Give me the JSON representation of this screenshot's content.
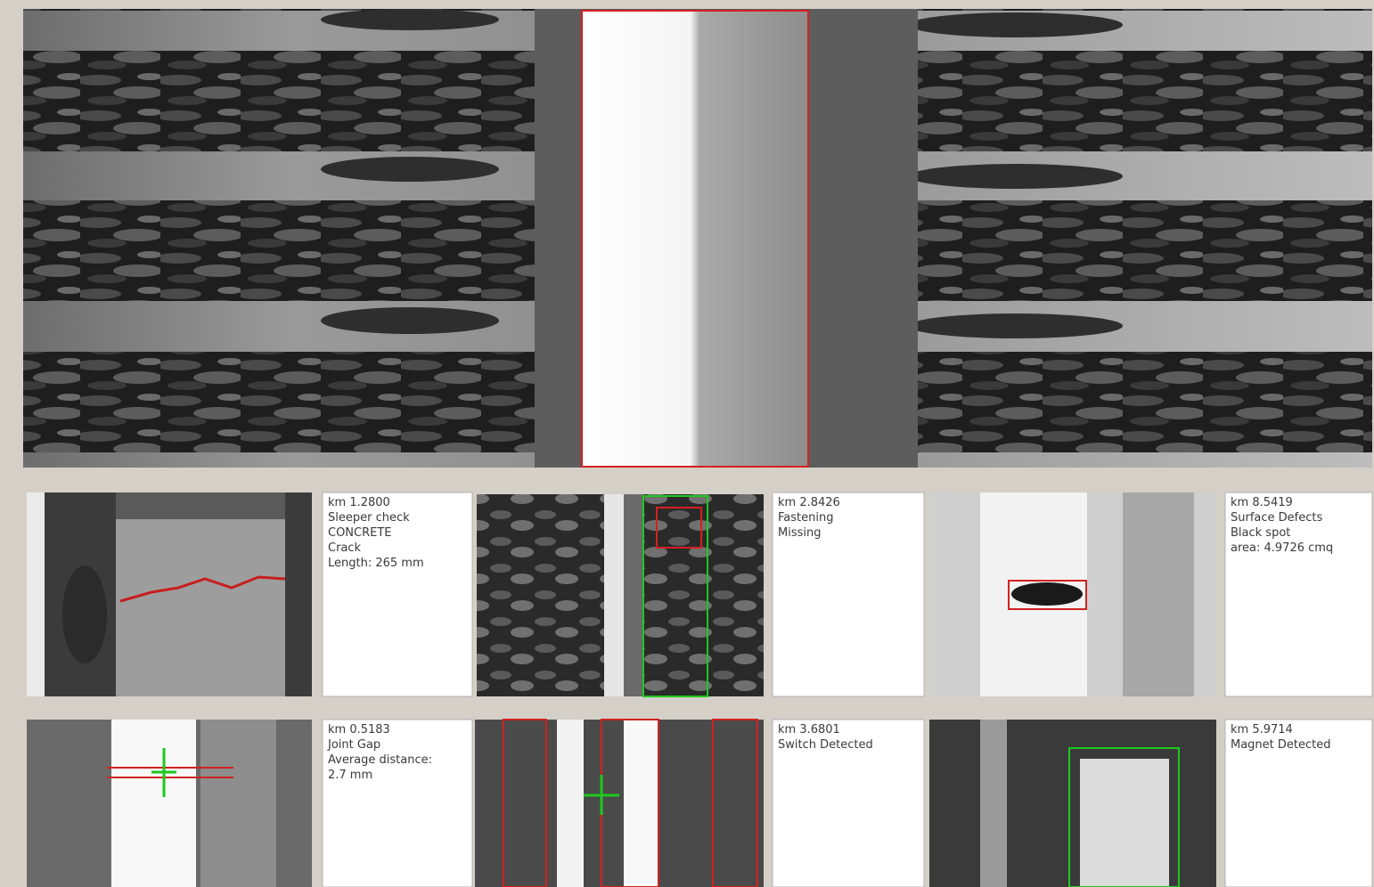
{
  "panels": [
    {
      "lines": [
        "km 1.2800",
        "Sleeper check",
        "CONCRETE",
        "Crack",
        "Length: 265 mm"
      ]
    },
    {
      "lines": [
        "km 2.8426",
        "Fastening",
        "Missing"
      ]
    },
    {
      "lines": [
        "km 8.5419",
        "Surface Defects",
        "Black spot",
        "area: 4.9726 cmq"
      ]
    },
    {
      "lines": [
        "km 0.5183",
        "Joint Gap",
        "Average distance:",
        "2.7 mm"
      ]
    },
    {
      "lines": [
        "km 3.6801",
        "Switch Detected"
      ]
    },
    {
      "lines": [
        "km 5.9714",
        "Magnet Detected"
      ]
    }
  ]
}
